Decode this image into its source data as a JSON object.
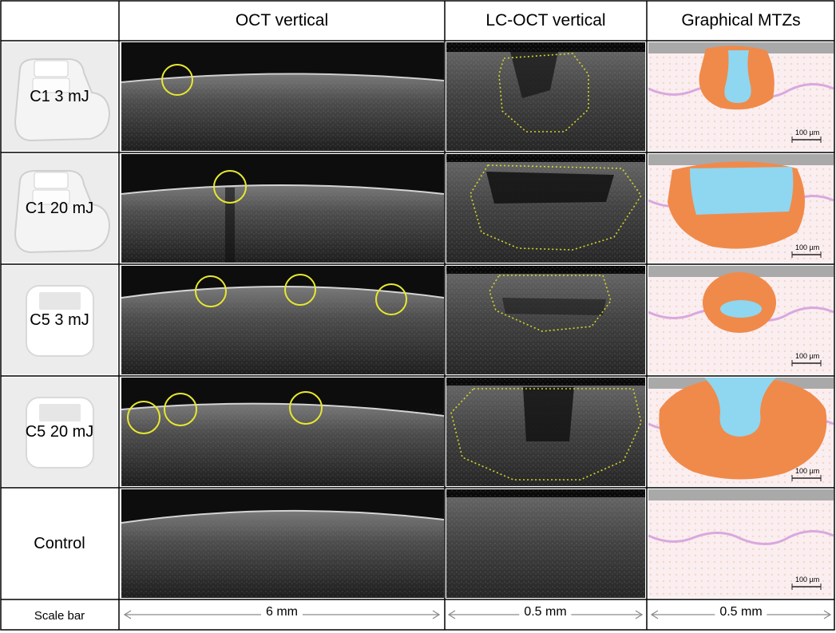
{
  "headers": {
    "col1": "",
    "col2": "OCT vertical",
    "col3": "LC-OCT vertical",
    "col4": "Graphical MTZs"
  },
  "rows": [
    {
      "label": "C1 3 mJ",
      "device": "C1"
    },
    {
      "label": "C1 20 mJ",
      "device": "C1"
    },
    {
      "label": "C5 3 mJ",
      "device": "C5"
    },
    {
      "label": "C5 20 mJ",
      "device": "C5"
    },
    {
      "label": "Control",
      "device": ""
    }
  ],
  "scale_bar_row": {
    "label": "Scale bar",
    "oct": "6 mm",
    "lcoct": "0.5 mm",
    "graphical": "0.5 mm"
  },
  "mtz_scale_label": "100 µm",
  "colors": {
    "grid": "#000000",
    "circle": "#e8e830",
    "dotted": "#d6d62a",
    "ablation": "#f08a4a",
    "cavity": "#8fd6f0",
    "skin": "#f9e6ee",
    "stratum": "#a9a9a9",
    "junction": "#d9a8df"
  }
}
